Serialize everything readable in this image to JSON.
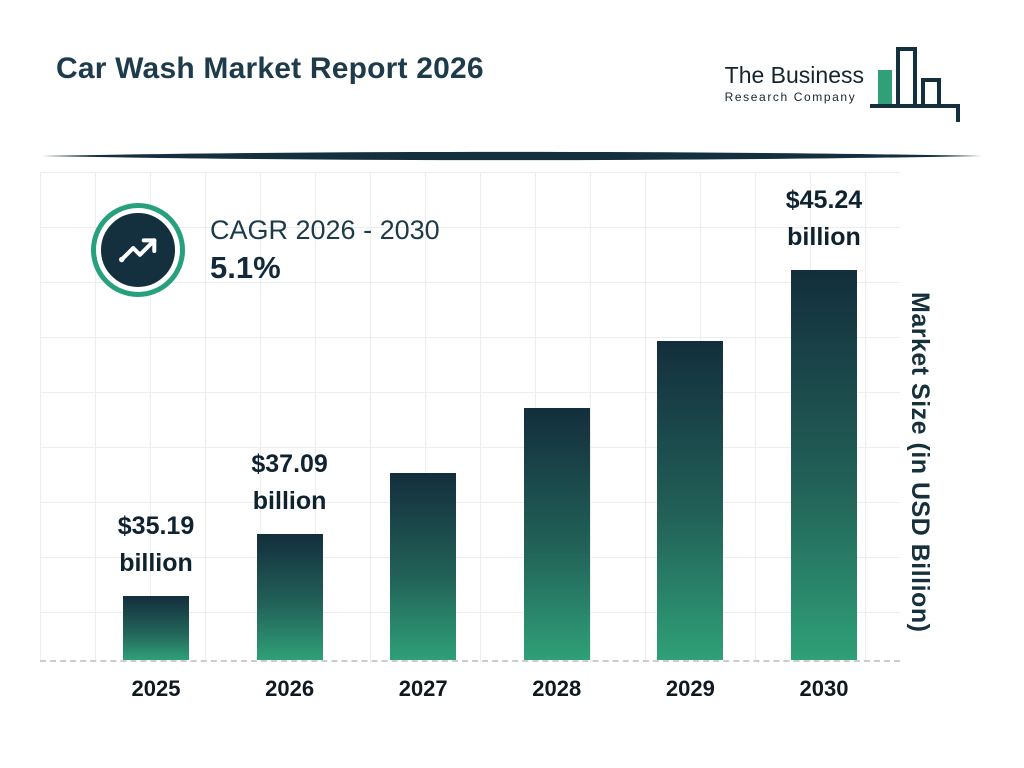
{
  "header": {
    "title": "Car Wash Market Report 2026",
    "logo": {
      "line1": "The Business",
      "line2": "Research Company"
    }
  },
  "cagr": {
    "label": "CAGR 2026 - 2030",
    "value": "5.1%"
  },
  "chart_data": {
    "type": "bar",
    "title": "Car Wash Market Report 2026",
    "categories": [
      "2025",
      "2026",
      "2027",
      "2028",
      "2029",
      "2030"
    ],
    "values": [
      35.19,
      37.09,
      38.98,
      40.97,
      43.06,
      45.24
    ],
    "values_estimated": [
      false,
      false,
      true,
      true,
      true,
      false
    ],
    "labels": [
      "$35.19 billion",
      "$37.09 billion",
      null,
      null,
      null,
      "$45.24 billion"
    ],
    "xlabel": "",
    "ylabel": "Market Size (in USD Billion)",
    "ylim": [
      33.2,
      45.24
    ],
    "grid": true,
    "legend_position": "none",
    "bar_color_top": "#132e3c",
    "bar_color_bottom": "#2fa077"
  },
  "colors": {
    "accent_teal": "#27a07e",
    "dark_navy": "#14303e",
    "grid_line": "#ededed"
  }
}
